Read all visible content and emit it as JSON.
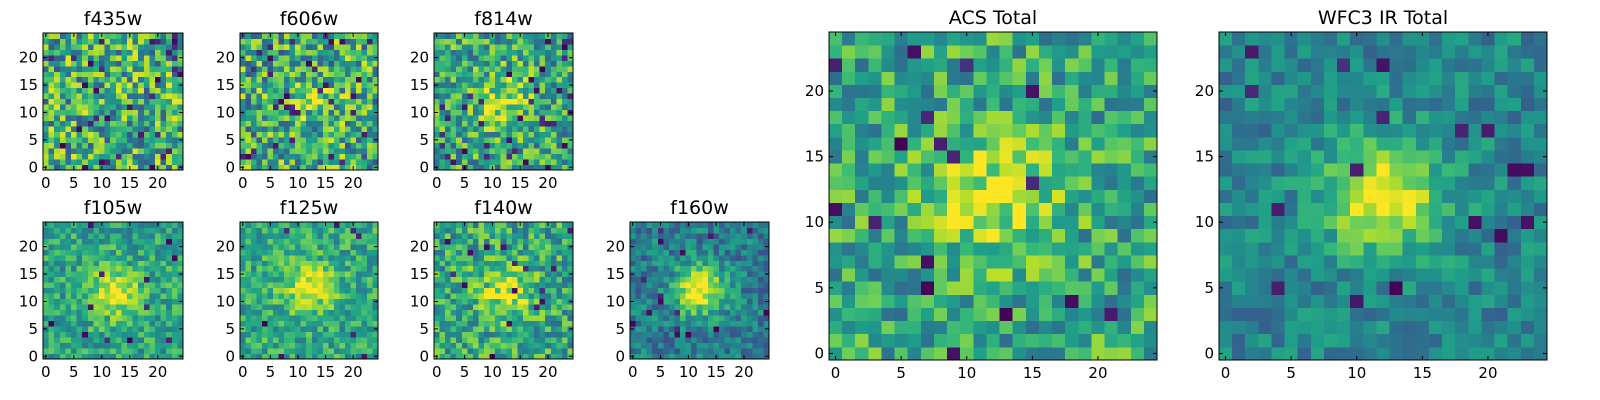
{
  "chart_data": [
    {
      "title": "f435w",
      "type": "heatmap",
      "grid_size": 25,
      "xlim": [
        0,
        25
      ],
      "ylim": [
        0,
        25
      ],
      "xticks": [
        0,
        5,
        10,
        15,
        20
      ],
      "yticks": [
        0,
        5,
        10,
        15,
        20
      ],
      "source_center": null,
      "source_strength": 0.0,
      "noise": 0.35,
      "base": 0.62,
      "dark_pixel_rate": 0.05,
      "grid": false
    },
    {
      "title": "f606w",
      "type": "heatmap",
      "grid_size": 25,
      "xlim": [
        0,
        25
      ],
      "ylim": [
        0,
        25
      ],
      "xticks": [
        0,
        5,
        10,
        15,
        20
      ],
      "yticks": [
        0,
        5,
        10,
        15,
        20
      ],
      "source_center": [
        12.5,
        12.5
      ],
      "source_strength": 0.15,
      "noise": 0.35,
      "base": 0.6,
      "dark_pixel_rate": 0.05,
      "grid": false
    },
    {
      "title": "f814w",
      "type": "heatmap",
      "grid_size": 25,
      "xlim": [
        0,
        25
      ],
      "ylim": [
        0,
        25
      ],
      "xticks": [
        0,
        5,
        10,
        15,
        20
      ],
      "yticks": [
        0,
        5,
        10,
        15,
        20
      ],
      "source_center": [
        12.5,
        12.5
      ],
      "source_strength": 0.3,
      "noise": 0.3,
      "base": 0.6,
      "dark_pixel_rate": 0.04,
      "grid": false
    },
    {
      "title": "f105w",
      "type": "heatmap",
      "grid_size": 25,
      "xlim": [
        0,
        25
      ],
      "ylim": [
        0,
        25
      ],
      "xticks": [
        0,
        5,
        10,
        15,
        20
      ],
      "yticks": [
        0,
        5,
        10,
        15,
        20
      ],
      "source_center": [
        12.5,
        12.5
      ],
      "source_strength": 0.38,
      "noise": 0.2,
      "base": 0.58,
      "dark_pixel_rate": 0.02,
      "grid": false
    },
    {
      "title": "f125w",
      "type": "heatmap",
      "grid_size": 25,
      "xlim": [
        0,
        25
      ],
      "ylim": [
        0,
        25
      ],
      "xticks": [
        0,
        5,
        10,
        15,
        20
      ],
      "yticks": [
        0,
        5,
        10,
        15,
        20
      ],
      "source_center": [
        12.5,
        13
      ],
      "source_strength": 0.35,
      "noise": 0.2,
      "base": 0.6,
      "dark_pixel_rate": 0.02,
      "grid": false
    },
    {
      "title": "f140w",
      "type": "heatmap",
      "grid_size": 25,
      "xlim": [
        0,
        25
      ],
      "ylim": [
        0,
        25
      ],
      "xticks": [
        0,
        5,
        10,
        15,
        20
      ],
      "yticks": [
        0,
        5,
        10,
        15,
        20
      ],
      "source_center": [
        13,
        12
      ],
      "source_strength": 0.33,
      "noise": 0.25,
      "base": 0.6,
      "dark_pixel_rate": 0.03,
      "grid": false
    },
    {
      "title": "f160w",
      "type": "heatmap",
      "grid_size": 25,
      "xlim": [
        0,
        25
      ],
      "ylim": [
        0,
        25
      ],
      "xticks": [
        0,
        5,
        10,
        15,
        20
      ],
      "yticks": [
        0,
        5,
        10,
        15,
        20
      ],
      "source_center": [
        12.5,
        12.5
      ],
      "source_strength": 0.6,
      "noise": 0.18,
      "base": 0.42,
      "dark_pixel_rate": 0.03,
      "grid": false
    },
    {
      "title": "ACS Total",
      "type": "heatmap",
      "grid_size": 25,
      "xlim": [
        0,
        25
      ],
      "ylim": [
        0,
        25
      ],
      "xticks": [
        0,
        5,
        10,
        15,
        20
      ],
      "yticks": [
        0,
        5,
        10,
        15,
        20
      ],
      "source_center": [
        12.5,
        12.5
      ],
      "source_strength": 0.35,
      "noise": 0.25,
      "base": 0.6,
      "dark_pixel_rate": 0.035,
      "grid": false
    },
    {
      "title": "WFC3 IR Total",
      "type": "heatmap",
      "grid_size": 25,
      "xlim": [
        0,
        25
      ],
      "ylim": [
        0,
        25
      ],
      "xticks": [
        0,
        5,
        10,
        15,
        20
      ],
      "yticks": [
        0,
        5,
        10,
        15,
        20
      ],
      "source_center": [
        12.5,
        12.5
      ],
      "source_strength": 0.55,
      "noise": 0.15,
      "base": 0.45,
      "dark_pixel_rate": 0.02,
      "grid": false
    }
  ],
  "colormap": [
    "#440154",
    "#482878",
    "#3e4989",
    "#31688e",
    "#26828e",
    "#1f9e89",
    "#35b779",
    "#6ece58",
    "#b5de2b",
    "#fde725"
  ]
}
